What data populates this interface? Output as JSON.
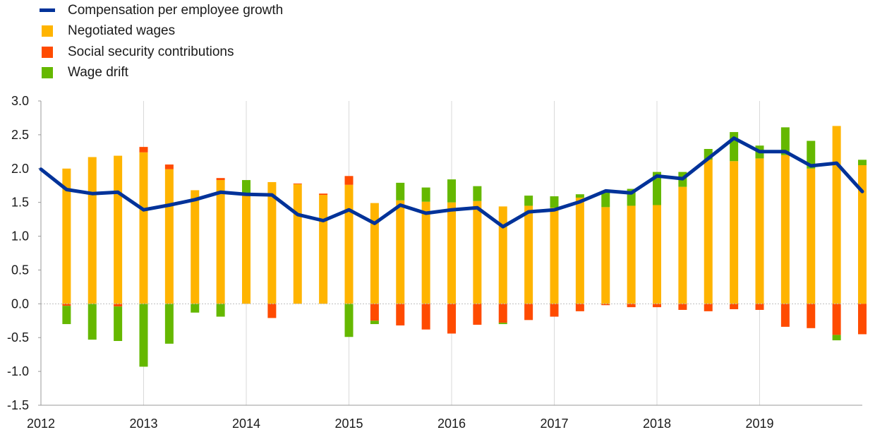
{
  "legend": {
    "items": [
      {
        "label": "Compensation per employee growth",
        "color": "#003299",
        "kind": "line"
      },
      {
        "label": "Negotiated wages",
        "color": "#FFB400",
        "kind": "bar"
      },
      {
        "label": "Social security contributions",
        "color": "#FF4B00",
        "kind": "bar"
      },
      {
        "label": "Wage drift",
        "color": "#65B800",
        "kind": "bar"
      }
    ]
  },
  "chart_data": {
    "type": "bar",
    "ylim": [
      -1.5,
      3.0
    ],
    "yticks": [
      "3.0",
      "2.5",
      "2.0",
      "1.5",
      "1.0",
      "0.5",
      "0.0",
      "-0.5",
      "-1.0",
      "-1.5"
    ],
    "ytick_values": [
      3.0,
      2.5,
      2.0,
      1.5,
      1.0,
      0.5,
      0.0,
      -0.5,
      -1.0,
      -1.5
    ],
    "xticks": [
      "2012",
      "2013",
      "2014",
      "2015",
      "2016",
      "2017",
      "2018",
      "2019"
    ],
    "grid": true,
    "categories": [
      "2012 Q2",
      "2012 Q3",
      "2012 Q4",
      "2013 Q1",
      "2013 Q2",
      "2013 Q3",
      "2013 Q4",
      "2014 Q1",
      "2014 Q2",
      "2014 Q3",
      "2014 Q4",
      "2015 Q1",
      "2015 Q2",
      "2015 Q3",
      "2015 Q4",
      "2016 Q1",
      "2016 Q2",
      "2016 Q3",
      "2016 Q4",
      "2017 Q1",
      "2017 Q2",
      "2017 Q3",
      "2017 Q4",
      "2018 Q1",
      "2018 Q2",
      "2018 Q3",
      "2018 Q4",
      "2019 Q1",
      "2019 Q2",
      "2019 Q3",
      "2019 Q4",
      "2020 Q1"
    ],
    "series": [
      {
        "name": "Negotiated wages",
        "color": "#FFB400",
        "values": [
          2.0,
          2.17,
          2.19,
          2.24,
          1.99,
          1.68,
          1.83,
          1.63,
          1.8,
          1.77,
          1.61,
          1.76,
          1.49,
          1.53,
          1.51,
          1.5,
          1.52,
          1.44,
          1.45,
          1.42,
          1.57,
          1.43,
          1.45,
          1.46,
          1.73,
          2.13,
          2.11,
          2.15,
          2.2,
          2.0,
          2.63,
          2.05
        ]
      },
      {
        "name": "Social security contributions",
        "color": "#FF4B00",
        "values": [
          -0.03,
          0.0,
          -0.04,
          0.08,
          0.07,
          0.0,
          0.03,
          0.0,
          -0.21,
          0.01,
          0.02,
          0.13,
          -0.25,
          -0.32,
          -0.38,
          -0.44,
          -0.31,
          -0.28,
          -0.24,
          -0.19,
          -0.11,
          -0.02,
          -0.05,
          -0.05,
          -0.09,
          -0.11,
          -0.08,
          -0.09,
          -0.34,
          -0.36,
          -0.46,
          -0.45
        ]
      },
      {
        "name": "Wage drift",
        "color": "#65B800",
        "values": [
          -0.27,
          -0.53,
          -0.51,
          -0.93,
          -0.59,
          -0.13,
          -0.19,
          0.2,
          0.0,
          0.0,
          0.0,
          -0.49,
          -0.05,
          0.26,
          0.21,
          0.34,
          0.22,
          -0.02,
          0.15,
          0.17,
          0.05,
          0.24,
          0.25,
          0.49,
          0.22,
          0.16,
          0.43,
          0.19,
          0.41,
          0.41,
          -0.08,
          0.08
        ]
      },
      {
        "name": "Compensation per employee growth",
        "color": "#003299",
        "values": [
          1.69,
          1.63,
          1.65,
          1.39,
          1.46,
          1.54,
          1.65,
          1.62,
          1.61,
          1.32,
          1.23,
          1.39,
          1.19,
          1.46,
          1.34,
          1.39,
          1.42,
          1.14,
          1.36,
          1.39,
          1.51,
          1.67,
          1.64,
          1.89,
          1.85,
          2.15,
          2.45,
          2.25,
          2.25,
          2.04,
          2.08,
          1.66
        ]
      }
    ]
  }
}
